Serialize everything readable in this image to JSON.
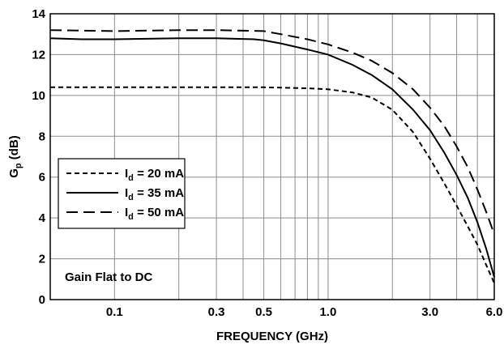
{
  "chart_data": {
    "type": "line",
    "title": "",
    "xlabel": "FREQUENCY (GHz)",
    "ylabel": {
      "base": "G",
      "sub": "p",
      "rest": " (dB)"
    },
    "x_scale": "log",
    "xlim": [
      0.05,
      6.0
    ],
    "ylim": [
      0,
      14
    ],
    "x_ticks": [
      {
        "value": 0.1,
        "label": "0.1"
      },
      {
        "value": 0.3,
        "label": "0.3"
      },
      {
        "value": 0.5,
        "label": "0.5"
      },
      {
        "value": 1.0,
        "label": "1.0"
      },
      {
        "value": 3.0,
        "label": "3.0"
      },
      {
        "value": 6.0,
        "label": "6.0"
      }
    ],
    "x_gridlines": [
      0.1,
      0.2,
      0.3,
      0.4,
      0.5,
      0.6,
      0.7,
      0.8,
      0.9,
      1.0,
      2.0,
      3.0,
      4.0,
      5.0,
      6.0
    ],
    "y_ticks": [
      {
        "value": 0,
        "label": "0"
      },
      {
        "value": 2,
        "label": "2"
      },
      {
        "value": 4,
        "label": "4"
      },
      {
        "value": 6,
        "label": "6"
      },
      {
        "value": 8,
        "label": "8"
      },
      {
        "value": 10,
        "label": "10"
      },
      {
        "value": 12,
        "label": "12"
      },
      {
        "value": 14,
        "label": "14"
      }
    ],
    "grid": true,
    "legend_position": "middle-left",
    "annotation": "Gain Flat to DC",
    "series": [
      {
        "legend": {
          "base": "I",
          "sub": "d",
          "rest": " = 20 mA"
        },
        "dash": "short-dash",
        "points": [
          [
            0.05,
            10.4
          ],
          [
            0.1,
            10.4
          ],
          [
            0.2,
            10.4
          ],
          [
            0.3,
            10.4
          ],
          [
            0.5,
            10.4
          ],
          [
            0.8,
            10.35
          ],
          [
            1.0,
            10.3
          ],
          [
            1.3,
            10.15
          ],
          [
            1.6,
            9.9
          ],
          [
            2.0,
            9.3
          ],
          [
            2.5,
            8.2
          ],
          [
            3.0,
            6.9
          ],
          [
            3.5,
            5.7
          ],
          [
            4.0,
            4.6
          ],
          [
            4.5,
            3.6
          ],
          [
            5.0,
            2.7
          ],
          [
            5.5,
            1.7
          ],
          [
            6.0,
            0.8
          ]
        ]
      },
      {
        "legend": {
          "base": "I",
          "sub": "d",
          "rest": " = 35 mA"
        },
        "dash": "solid",
        "points": [
          [
            0.05,
            12.8
          ],
          [
            0.07,
            12.75
          ],
          [
            0.1,
            12.75
          ],
          [
            0.2,
            12.8
          ],
          [
            0.3,
            12.8
          ],
          [
            0.45,
            12.75
          ],
          [
            0.5,
            12.7
          ],
          [
            0.6,
            12.55
          ],
          [
            0.8,
            12.25
          ],
          [
            1.0,
            12.0
          ],
          [
            1.3,
            11.5
          ],
          [
            1.6,
            11.0
          ],
          [
            2.0,
            10.3
          ],
          [
            2.5,
            9.3
          ],
          [
            3.0,
            8.3
          ],
          [
            3.5,
            7.2
          ],
          [
            4.0,
            6.1
          ],
          [
            4.5,
            5.0
          ],
          [
            5.0,
            3.8
          ],
          [
            5.5,
            2.5
          ],
          [
            6.0,
            1.1
          ]
        ]
      },
      {
        "legend": {
          "base": "I",
          "sub": "d",
          "rest": " = 50 mA"
        },
        "dash": "long-dash",
        "points": [
          [
            0.05,
            13.2
          ],
          [
            0.1,
            13.15
          ],
          [
            0.2,
            13.2
          ],
          [
            0.3,
            13.2
          ],
          [
            0.5,
            13.15
          ],
          [
            0.6,
            13.0
          ],
          [
            0.8,
            12.75
          ],
          [
            1.0,
            12.5
          ],
          [
            1.3,
            12.1
          ],
          [
            1.6,
            11.7
          ],
          [
            2.0,
            11.1
          ],
          [
            2.5,
            10.3
          ],
          [
            3.0,
            9.4
          ],
          [
            3.5,
            8.5
          ],
          [
            4.0,
            7.5
          ],
          [
            4.5,
            6.5
          ],
          [
            5.0,
            5.4
          ],
          [
            5.5,
            4.3
          ],
          [
            6.0,
            3.2
          ]
        ]
      }
    ]
  }
}
